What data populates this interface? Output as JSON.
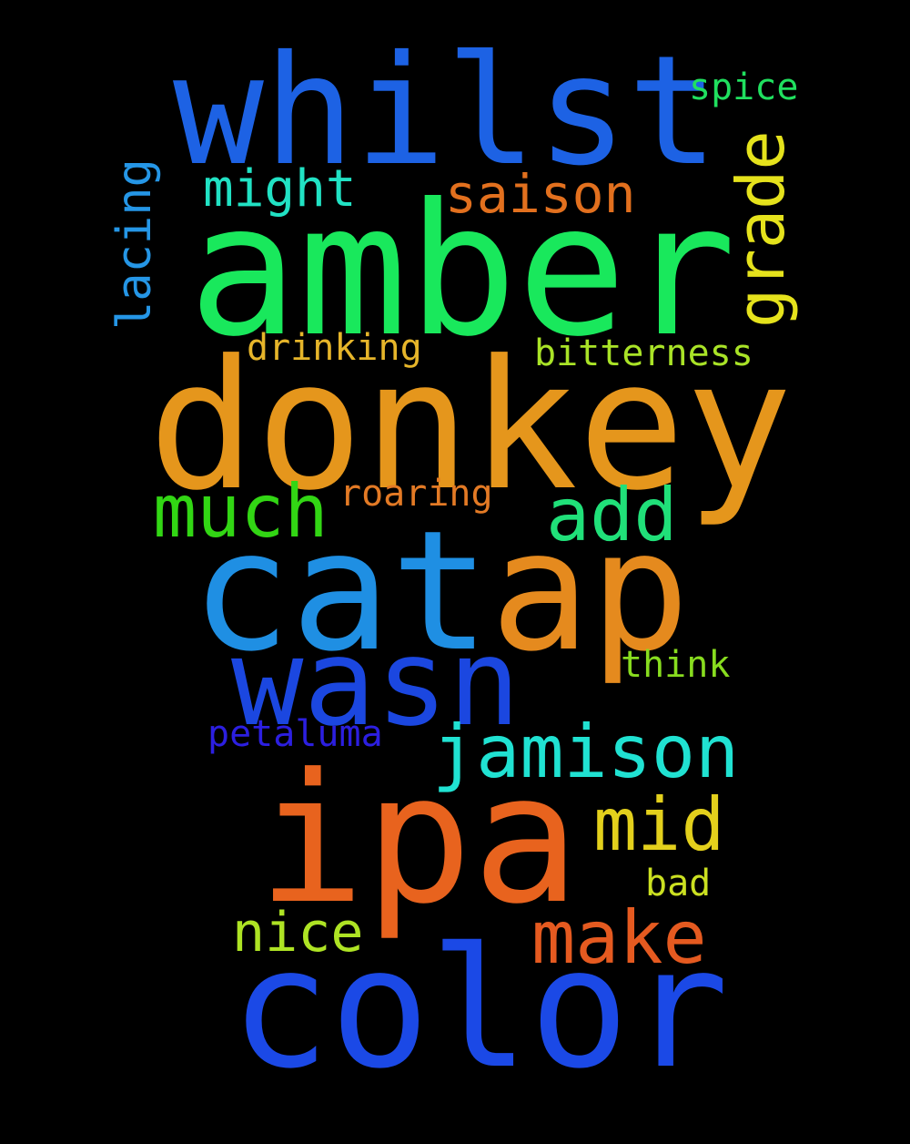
{
  "background": "#000000",
  "words": [
    {
      "id": "whilst",
      "text": "whilst",
      "color": "#1d62e4"
    },
    {
      "id": "spice",
      "text": "spice",
      "color": "#20e05f"
    },
    {
      "id": "lacing",
      "text": "lacing",
      "color": "#2596e6"
    },
    {
      "id": "grade",
      "text": "grade",
      "color": "#e5e21c"
    },
    {
      "id": "might",
      "text": "might",
      "color": "#21e2c4"
    },
    {
      "id": "saison",
      "text": "saison",
      "color": "#e2701e"
    },
    {
      "id": "amber",
      "text": "amber",
      "color": "#19e85c"
    },
    {
      "id": "drinking",
      "text": "drinking",
      "color": "#e6b52a"
    },
    {
      "id": "bitterness",
      "text": "bitterness",
      "color": "#a9e327"
    },
    {
      "id": "donkey",
      "text": "donkey",
      "color": "#e5961c"
    },
    {
      "id": "much",
      "text": "much",
      "color": "#32d614"
    },
    {
      "id": "roaring",
      "text": "roaring",
      "color": "#e37a25"
    },
    {
      "id": "add",
      "text": "add",
      "color": "#20e079"
    },
    {
      "id": "catap_blue",
      "text": "cat",
      "color": "#1f8fe3"
    },
    {
      "id": "catap_orange",
      "text": "ap",
      "color": "#e58a1e"
    },
    {
      "id": "think",
      "text": "think",
      "color": "#88dc1f"
    },
    {
      "id": "wasn",
      "text": "wasn",
      "color": "#1b47e0"
    },
    {
      "id": "petaluma",
      "text": "petaluma",
      "color": "#2c1fe0"
    },
    {
      "id": "jamison",
      "text": "jamison",
      "color": "#20e2d2"
    },
    {
      "id": "ipa",
      "text": "ipa",
      "color": "#e8631e"
    },
    {
      "id": "mid",
      "text": "mid",
      "color": "#e3d01c"
    },
    {
      "id": "bad",
      "text": "bad",
      "color": "#cbe021"
    },
    {
      "id": "make",
      "text": "make",
      "color": "#e55a20"
    },
    {
      "id": "nice",
      "text": "nice",
      "color": "#aee324"
    },
    {
      "id": "color",
      "text": "color",
      "color": "#1b49e6"
    }
  ]
}
